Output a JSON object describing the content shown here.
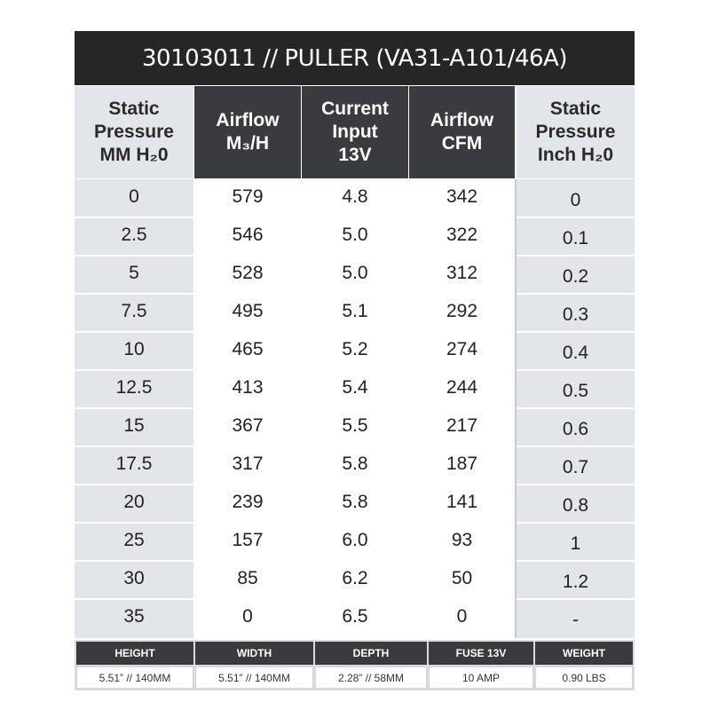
{
  "title": "30103011 // PULLER (VA31-A101/46A)",
  "headers": [
    "Static\nPressure\nMM H₂0",
    "Airflow\nM₃/H",
    "Current\nInput\n13V",
    "Airflow\nCFM",
    "Static\nPressure\nInch H₂0"
  ],
  "rows": [
    [
      "0",
      "579",
      "4.8",
      "342",
      "0"
    ],
    [
      "2.5",
      "546",
      "5.0",
      "322",
      "0.1"
    ],
    [
      "5",
      "528",
      "5.0",
      "312",
      "0.2"
    ],
    [
      "7.5",
      "495",
      "5.1",
      "292",
      "0.3"
    ],
    [
      "10",
      "465",
      "5.2",
      "274",
      "0.4"
    ],
    [
      "12.5",
      "413",
      "5.4",
      "244",
      "0.5"
    ],
    [
      "15",
      "367",
      "5.5",
      "217",
      "0.6"
    ],
    [
      "17.5",
      "317",
      "5.8",
      "187",
      "0.7"
    ],
    [
      "20",
      "239",
      "5.8",
      "141",
      "0.8"
    ],
    [
      "25",
      "157",
      "6.0",
      "93",
      "1"
    ],
    [
      "30",
      "85",
      "6.2",
      "50",
      "1.2"
    ],
    [
      "35",
      "0",
      "6.5",
      "0",
      "-"
    ]
  ],
  "specs": {
    "labels": [
      "HEIGHT",
      "WIDTH",
      "DEPTH",
      "FUSE 13V",
      "WEIGHT"
    ],
    "values": [
      "5.51” // 140MM",
      "5.51” // 140MM",
      "2.28” // 58MM",
      "10 AMP",
      "0.90 LBS"
    ]
  },
  "colors": {
    "title_bg": "#262626",
    "dark_header": "#3a3b3e",
    "light_column": "#e2e5ea",
    "row_divider": "#cfd4da"
  }
}
